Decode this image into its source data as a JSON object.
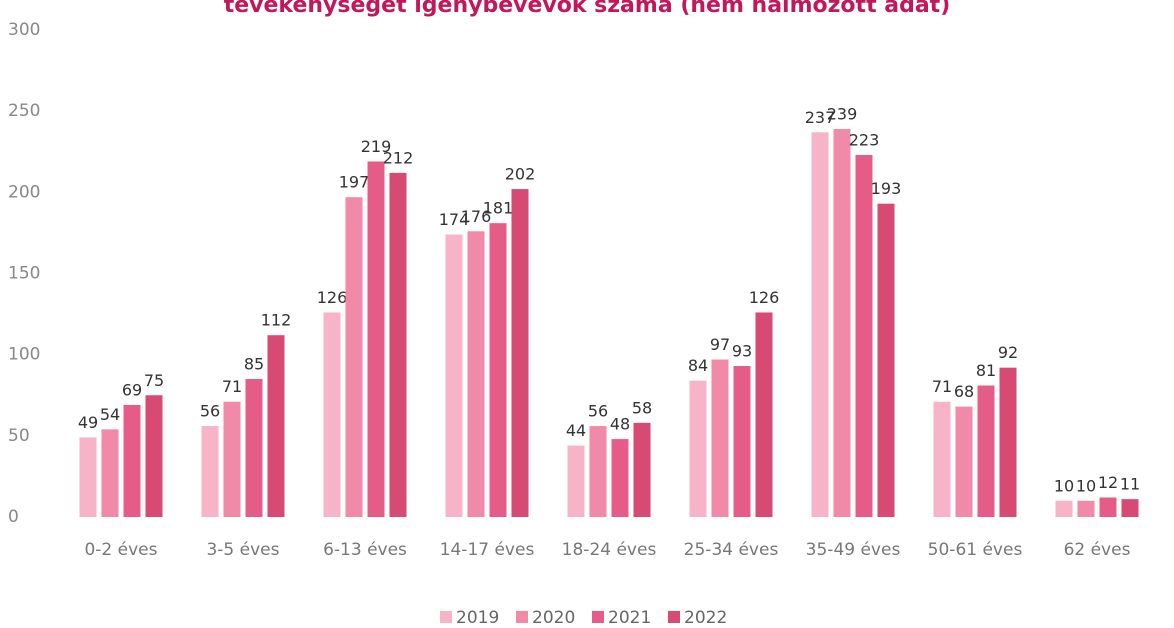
{
  "chart_data": {
    "type": "bar",
    "title": "tevékenységet igénybevevők száma (nem halmozott adat)",
    "categories": [
      "0-2 éves",
      "3-5 éves",
      "6-13 éves",
      "14-17 éves",
      "18-24 éves",
      "25-34 éves",
      "35-49 éves",
      "50-61 éves",
      "62 éves"
    ],
    "series": [
      {
        "name": "2019",
        "color": "#f7b3c7",
        "values": [
          49,
          56,
          126,
          174,
          44,
          84,
          237,
          71,
          10
        ]
      },
      {
        "name": "2020",
        "color": "#f08aa8",
        "values": [
          54,
          71,
          197,
          176,
          56,
          97,
          239,
          68,
          10
        ]
      },
      {
        "name": "2021",
        "color": "#e65c88",
        "values": [
          69,
          85,
          219,
          181,
          48,
          93,
          223,
          81,
          12
        ]
      },
      {
        "name": "2022",
        "color": "#d64a74",
        "values": [
          75,
          112,
          212,
          202,
          58,
          126,
          193,
          92,
          11
        ]
      }
    ],
    "ylim": [
      0,
      300
    ],
    "yticks": [
      0,
      50,
      100,
      150,
      200,
      250,
      300
    ],
    "grid": false,
    "legend": "bottom"
  }
}
